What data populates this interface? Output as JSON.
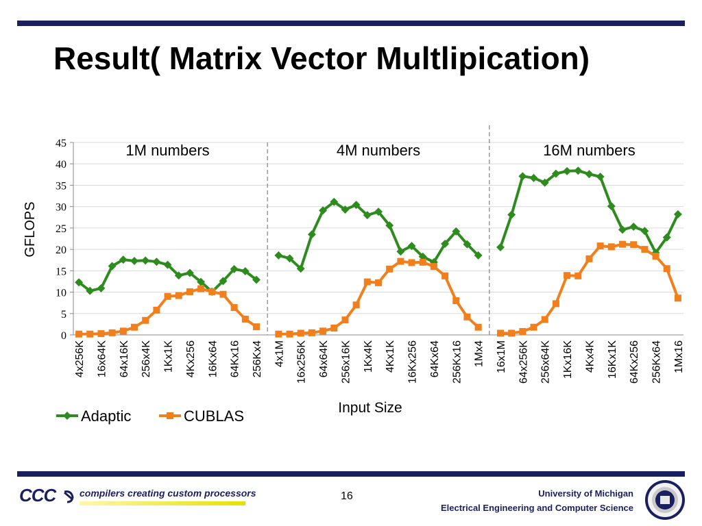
{
  "slide": {
    "title": "Result( Matrix Vector Multlipication)",
    "page_number": "16",
    "tagline": "compilers creating custom processors",
    "logo_text": "CCC",
    "university": "University of Michigan",
    "department": "Electrical Engineering and Computer Science"
  },
  "colors": {
    "adaptic": "#2e8b1e",
    "cublas": "#f07f1c",
    "rule": "#1a1f5e",
    "grid": "#d9d9d9",
    "divider": "#999999"
  },
  "chart_data": {
    "type": "line",
    "ylabel": "GFLOPS",
    "xlabel": "Input Size",
    "ylim": [
      0,
      45
    ],
    "yticks": [
      0,
      5,
      10,
      15,
      20,
      25,
      30,
      35,
      40,
      45
    ],
    "grid": true,
    "legend_position": "bottom-left",
    "groups": [
      {
        "label": "1M numbers",
        "categories": [
          "4x256K",
          "16x64K",
          "64x16K",
          "256x4K",
          "1Kx1K",
          "4Kx256",
          "16Kx64",
          "64Kx16",
          "256Kx4"
        ],
        "adaptic": [
          12.3,
          10.3,
          10.9,
          16.1,
          17.6,
          17.3,
          17.4,
          17.1,
          16.4,
          13.9,
          14.5,
          12.4,
          10.1,
          12.6,
          15.4,
          14.9,
          12.9
        ],
        "cublas": [
          0.2,
          0.2,
          0.3,
          0.5,
          0.9,
          1.8,
          3.4,
          5.8,
          9.0,
          9.2,
          10.1,
          10.8,
          10.1,
          9.5,
          6.4,
          3.7,
          1.9
        ]
      },
      {
        "label": "4M numbers",
        "categories": [
          "4x1M",
          "16x256K",
          "64x64K",
          "256x16K",
          "1Kx4K",
          "4Kx1K",
          "16Kx256",
          "64Kx64",
          "256Kx16",
          "1Mx4"
        ],
        "adaptic": [
          18.6,
          17.9,
          15.5,
          23.5,
          29.1,
          31.1,
          29.3,
          30.4,
          28.0,
          28.8,
          25.6,
          19.5,
          20.8,
          18.3,
          17.0,
          21.3,
          24.2,
          21.2,
          18.6
        ],
        "cublas": [
          0.2,
          0.2,
          0.4,
          0.5,
          0.9,
          1.6,
          3.5,
          7.0,
          12.4,
          12.2,
          15.4,
          17.2,
          16.9,
          17.0,
          16.0,
          13.8,
          8.0,
          4.2,
          1.8
        ]
      },
      {
        "label": "16M numbers",
        "categories": [
          "16x1M",
          "64x256K",
          "256x64K",
          "1Kx16K",
          "4Kx4K",
          "16Kx1K",
          "64Kx256",
          "256Kx64",
          "1Mx16"
        ],
        "adaptic": [
          20.5,
          28.1,
          37.1,
          36.7,
          35.6,
          37.7,
          38.3,
          38.4,
          37.6,
          37.0,
          30.1,
          24.6,
          25.3,
          24.3,
          19.2,
          22.8,
          28.2
        ],
        "cublas": [
          0.4,
          0.4,
          0.8,
          1.8,
          3.6,
          7.3,
          13.9,
          13.8,
          17.8,
          20.8,
          20.6,
          21.2,
          21.1,
          20.0,
          18.4,
          15.5,
          8.6
        ]
      }
    ],
    "series": [
      {
        "name": "Adaptic",
        "marker": "diamond"
      },
      {
        "name": "CUBLAS",
        "marker": "square"
      }
    ]
  }
}
